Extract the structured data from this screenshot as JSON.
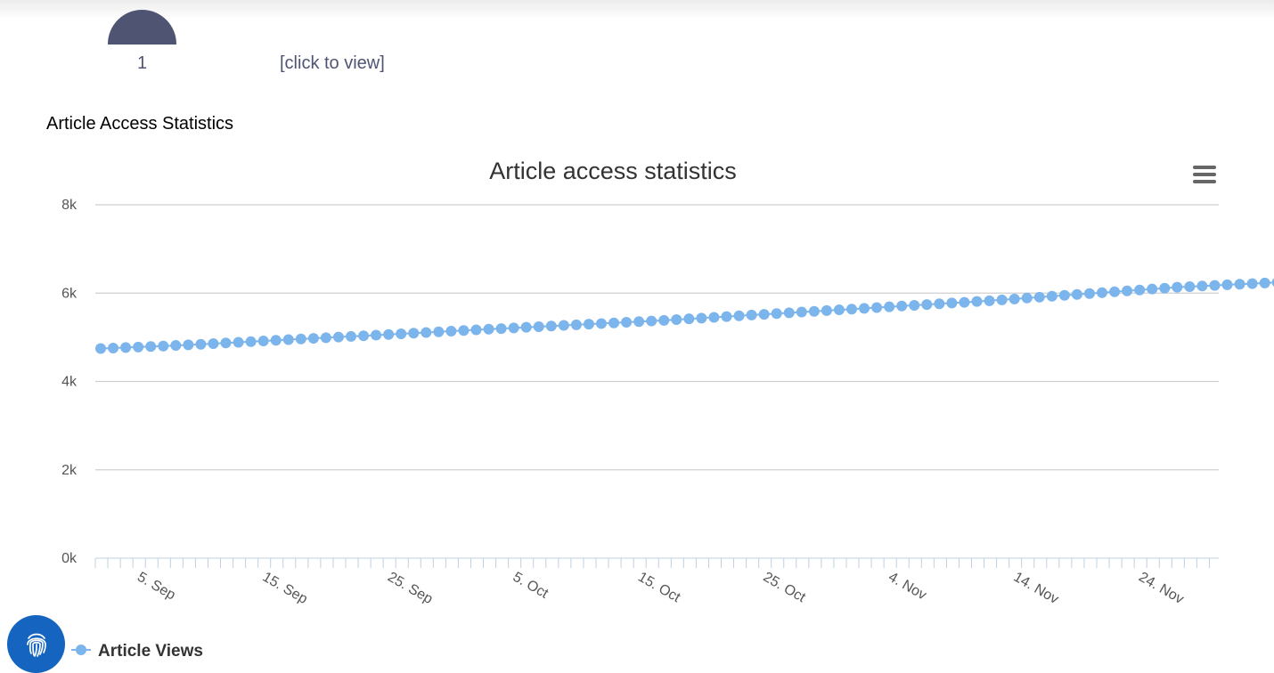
{
  "header": {
    "metric_value": "1",
    "view_link": "[click to view]"
  },
  "section": {
    "title": "Article Access Statistics"
  },
  "colors": {
    "series": "#7cb5ec",
    "gauge": "#4f5473",
    "accent_button": "#1565c0"
  },
  "icons": {
    "menu": "hamburger-menu-icon",
    "floating_button": "fingerprint-icon"
  },
  "chart_data": {
    "type": "line",
    "title": "Article access statistics",
    "xlabel": "",
    "ylabel": "",
    "ylim": [
      0,
      8000
    ],
    "yticks": [
      "0k",
      "2k",
      "4k",
      "6k",
      "8k"
    ],
    "x_start": "2 Sep",
    "x_tick_labels": [
      "5. Sep",
      "15. Sep",
      "25. Sep",
      "5. Oct",
      "15. Oct",
      "25. Oct",
      "4. Nov",
      "14. Nov",
      "24. Nov"
    ],
    "legend_position": "bottom-left",
    "grid": true,
    "series": [
      {
        "name": "Article Views",
        "values": [
          4745,
          4756,
          4768,
          4779,
          4790,
          4801,
          4815,
          4828,
          4842,
          4856,
          4871,
          4886,
          4901,
          4916,
          4931,
          4947,
          4962,
          4976,
          4991,
          5005,
          5019,
          5034,
          5048,
          5063,
          5078,
          5094,
          5109,
          5124,
          5139,
          5154,
          5168,
          5183,
          5197,
          5211,
          5226,
          5240,
          5254,
          5269,
          5283,
          5297,
          5311,
          5326,
          5340,
          5354,
          5369,
          5383,
          5400,
          5417,
          5434,
          5451,
          5469,
          5486,
          5503,
          5520,
          5537,
          5554,
          5571,
          5588,
          5604,
          5621,
          5638,
          5655,
          5672,
          5689,
          5707,
          5724,
          5741,
          5758,
          5775,
          5792,
          5810,
          5827,
          5847,
          5867,
          5888,
          5908,
          5929,
          5949,
          5970,
          5990,
          6010,
          6031,
          6051,
          6071,
          6092,
          6112,
          6133,
          6147,
          6160,
          6174,
          6188,
          6201,
          6215,
          6229,
          6242,
          6233
        ]
      }
    ]
  }
}
